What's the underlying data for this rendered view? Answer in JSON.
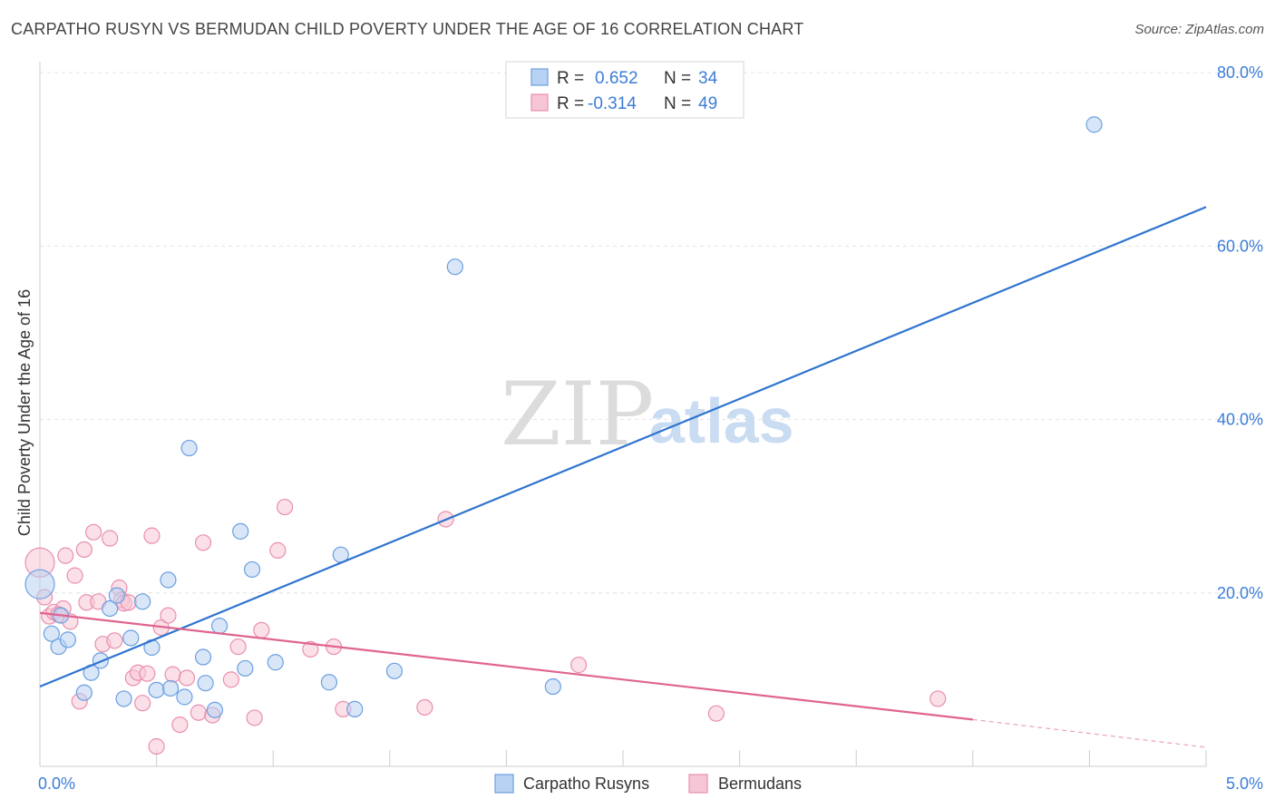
{
  "header": {
    "title": "CARPATHO RUSYN VS BERMUDAN CHILD POVERTY UNDER THE AGE OF 16 CORRELATION CHART",
    "source": "Source: ZipAtlas.com"
  },
  "watermark": {
    "zip": "ZIP",
    "atlas": "atlas"
  },
  "legend": {
    "r_label": "R =",
    "n_label": "N =",
    "rows": [
      {
        "r": "0.652",
        "n": "34"
      },
      {
        "r": "-0.314",
        "n": "49"
      }
    ]
  },
  "chart_data": {
    "type": "scatter",
    "title": "CARPATHO RUSYN VS BERMUDAN CHILD POVERTY UNDER THE AGE OF 16 CORRELATION CHART",
    "xlabel": "",
    "ylabel": "Child Poverty Under the Age of 16",
    "xlim": [
      0,
      5
    ],
    "ylim": [
      0,
      80
    ],
    "x_tick_labels": [
      "0.0%",
      "5.0%"
    ],
    "y_ticks": [
      20,
      40,
      60,
      80
    ],
    "y_tick_labels": [
      "20.0%",
      "40.0%",
      "60.0%",
      "80.0%"
    ],
    "grid": true,
    "legend_position": "bottom",
    "series": [
      {
        "name": "Carpatho Rusyns",
        "color": "#6b9fe0",
        "fill": "#b8d2f3",
        "line_color": "#2f74d0",
        "r": 0.652,
        "n": 34,
        "trend": {
          "x0": 0.0,
          "y0": 9.2,
          "x1": 5.0,
          "y1": 64.5
        },
        "points": [
          [
            0.0,
            21.0
          ],
          [
            0.05,
            15.3
          ],
          [
            0.08,
            13.8
          ],
          [
            0.09,
            17.4
          ],
          [
            0.12,
            14.6
          ],
          [
            0.19,
            8.5
          ],
          [
            0.22,
            10.8
          ],
          [
            0.26,
            12.2
          ],
          [
            0.3,
            18.2
          ],
          [
            0.33,
            19.7
          ],
          [
            0.36,
            7.8
          ],
          [
            0.39,
            14.8
          ],
          [
            0.44,
            19.0
          ],
          [
            0.48,
            13.7
          ],
          [
            0.5,
            8.8
          ],
          [
            0.55,
            21.5
          ],
          [
            0.56,
            9.0
          ],
          [
            0.62,
            8.0
          ],
          [
            0.64,
            36.7
          ],
          [
            0.7,
            12.6
          ],
          [
            0.71,
            9.6
          ],
          [
            0.75,
            6.5
          ],
          [
            0.77,
            16.2
          ],
          [
            0.86,
            27.1
          ],
          [
            0.88,
            11.3
          ],
          [
            0.91,
            22.7
          ],
          [
            1.01,
            12.0
          ],
          [
            1.24,
            9.7
          ],
          [
            1.29,
            24.4
          ],
          [
            1.35,
            6.6
          ],
          [
            1.52,
            11.0
          ],
          [
            1.78,
            57.6
          ],
          [
            2.2,
            9.2
          ],
          [
            4.52,
            74.0
          ]
        ]
      },
      {
        "name": "Bermudans",
        "color": "#e98fae",
        "fill": "#f7c6d6",
        "line_color": "#e0648f",
        "r": -0.314,
        "n": 49,
        "trend": {
          "x0": 0.0,
          "y0": 17.7,
          "x1": 4.0,
          "y1": 5.4
        },
        "trend_dashed": {
          "x0": 4.0,
          "y0": 5.4,
          "x1": 5.0,
          "y1": 2.2
        },
        "points": [
          [
            0.0,
            23.5
          ],
          [
            0.02,
            19.5
          ],
          [
            0.04,
            17.3
          ],
          [
            0.06,
            17.8
          ],
          [
            0.1,
            18.2
          ],
          [
            0.11,
            24.3
          ],
          [
            0.15,
            22.0
          ],
          [
            0.17,
            7.5
          ],
          [
            0.19,
            25.0
          ],
          [
            0.2,
            18.9
          ],
          [
            0.23,
            27.0
          ],
          [
            0.25,
            19.0
          ],
          [
            0.27,
            14.1
          ],
          [
            0.3,
            26.3
          ],
          [
            0.32,
            14.5
          ],
          [
            0.34,
            20.6
          ],
          [
            0.35,
            19.2
          ],
          [
            0.36,
            18.8
          ],
          [
            0.38,
            18.9
          ],
          [
            0.4,
            10.2
          ],
          [
            0.42,
            10.8
          ],
          [
            0.44,
            7.3
          ],
          [
            0.46,
            10.7
          ],
          [
            0.48,
            26.6
          ],
          [
            0.5,
            2.3
          ],
          [
            0.52,
            16.0
          ],
          [
            0.55,
            17.4
          ],
          [
            0.6,
            4.8
          ],
          [
            0.68,
            6.2
          ],
          [
            0.7,
            25.8
          ],
          [
            0.74,
            5.9
          ],
          [
            0.82,
            10.0
          ],
          [
            0.85,
            13.8
          ],
          [
            0.92,
            5.6
          ],
          [
            0.95,
            15.7
          ],
          [
            1.02,
            24.9
          ],
          [
            1.05,
            29.9
          ],
          [
            1.16,
            13.5
          ],
          [
            1.26,
            13.8
          ],
          [
            1.3,
            6.6
          ],
          [
            1.65,
            6.8
          ],
          [
            1.74,
            28.5
          ],
          [
            2.31,
            11.7
          ],
          [
            2.9,
            6.1
          ],
          [
            3.85,
            7.8
          ],
          [
            0.08,
            17.5
          ],
          [
            0.13,
            16.7
          ],
          [
            0.57,
            10.6
          ],
          [
            0.63,
            10.2
          ]
        ]
      }
    ]
  }
}
